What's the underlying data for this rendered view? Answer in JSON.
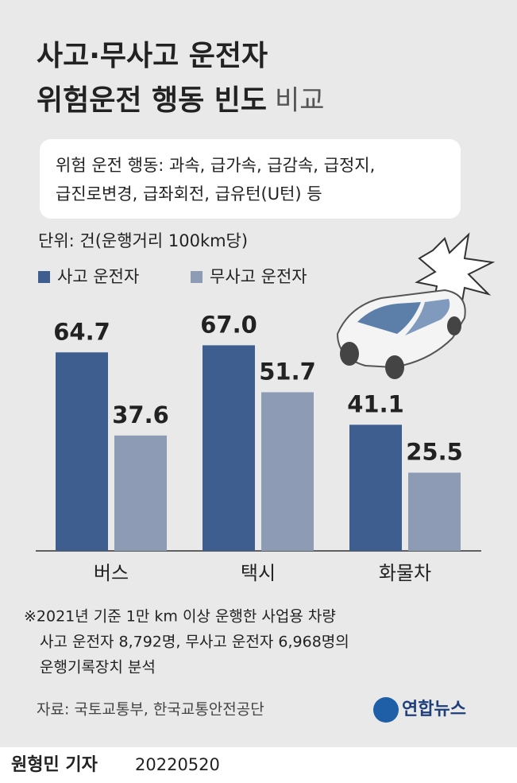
{
  "chart_data": {
    "type": "bar",
    "title": [
      "사고·무사고 운전자",
      "위험운전 행동 빈도",
      "비교"
    ],
    "note": [
      "위험 운전 행동: 과속, 급가속, 급감속, 급정지,",
      "급진로변경, 급좌회전, 급유턴(U턴) 등"
    ],
    "unit": "단위: 건(운행거리 100km당)",
    "categories": [
      "버스",
      "택시",
      "화물차"
    ],
    "series": [
      {
        "name": "사고 운전자",
        "color": "#3d5e8e",
        "values": [
          64.7,
          67.0,
          41.1
        ],
        "value_labels": [
          "64.7",
          "67.0",
          "41.1"
        ]
      },
      {
        "name": "무사고 운전자",
        "color": "#8d9cb4",
        "values": [
          37.6,
          51.7,
          25.5
        ],
        "value_labels": [
          "37.6",
          "51.7",
          "25.5"
        ]
      }
    ],
    "footnote": [
      "※2021년 기준 1만 km 이상 운행한 사업용 차량",
      "사고 운전자 8,792명, 무사고 운전자 6,968명의",
      "운행기록장치 분석"
    ],
    "source": "자료: 국토교통부, 한국교통안전공단",
    "logo": "연합뉴스",
    "byline": "원형민 기자",
    "date": "20220520"
  }
}
